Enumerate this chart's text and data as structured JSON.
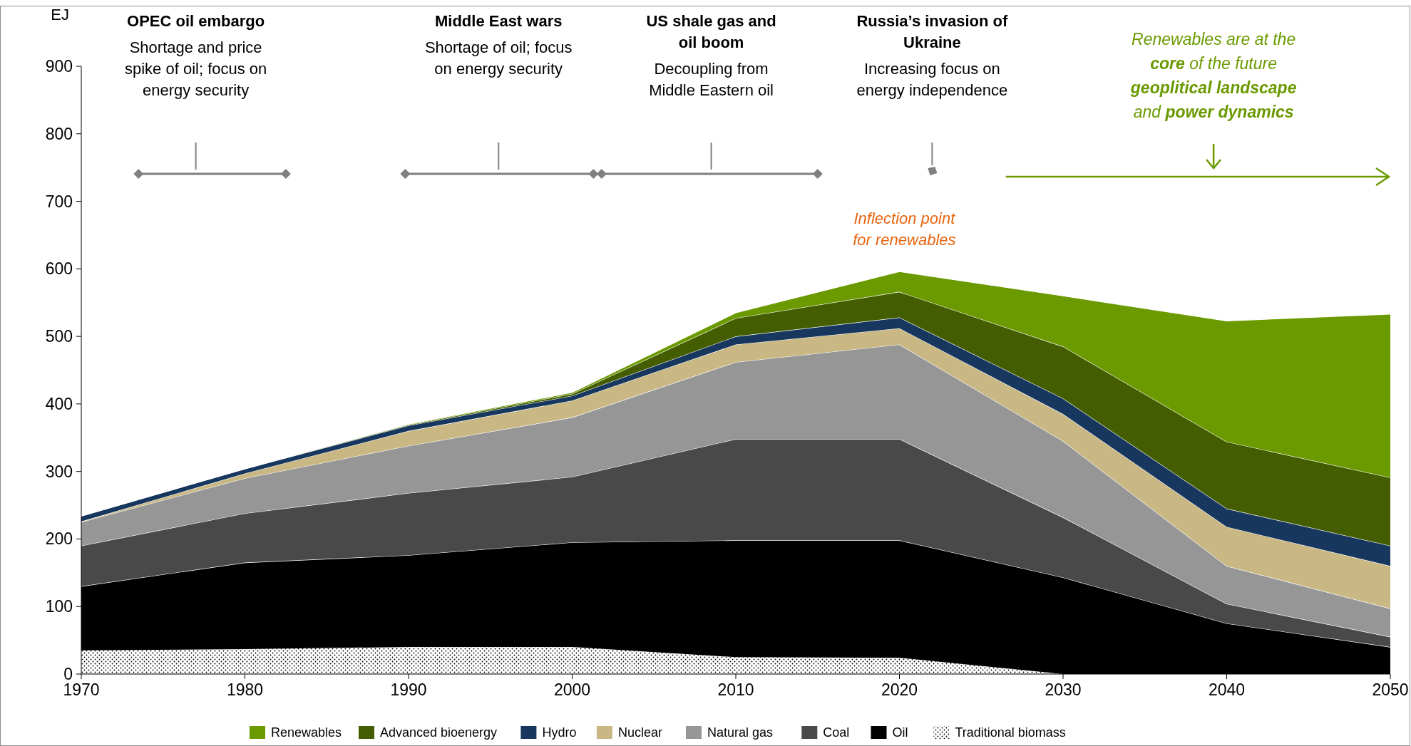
{
  "chart_data": {
    "type": "area",
    "stacked": true,
    "ylabel": "EJ",
    "x": [
      1970,
      1980,
      1990,
      2000,
      2010,
      2020,
      2030,
      2040,
      2050
    ],
    "xlim": [
      1970,
      2050
    ],
    "xticks": [
      1970,
      1980,
      1990,
      2000,
      2010,
      2020,
      2030,
      2040,
      2050
    ],
    "ylim": [
      0,
      900
    ],
    "yticks": [
      0,
      100,
      200,
      300,
      400,
      500,
      600,
      700,
      800,
      900
    ],
    "grid": false,
    "legend": "bottom",
    "series": [
      {
        "name": "Traditional biomass",
        "color": "#000000",
        "values": [
          35,
          37,
          40,
          40,
          25,
          24,
          0,
          0,
          0
        ]
      },
      {
        "name": "Oil",
        "color": "#000000",
        "values": [
          95,
          128,
          136,
          155,
          173,
          174,
          143,
          75,
          40
        ]
      },
      {
        "name": "Coal",
        "color": "#494949",
        "values": [
          60,
          73,
          92,
          97,
          150,
          150,
          89,
          29,
          15
        ]
      },
      {
        "name": "Natural gas",
        "color": "#969696",
        "values": [
          35,
          52,
          70,
          88,
          114,
          140,
          113,
          56,
          42
        ]
      },
      {
        "name": "Nuclear",
        "color": "#c9b784",
        "values": [
          1,
          7,
          22,
          25,
          26,
          24,
          40,
          58,
          63
        ]
      },
      {
        "name": "Hydro",
        "color": "#17375e",
        "values": [
          8,
          7,
          8,
          7,
          12,
          16,
          23,
          27,
          30
        ]
      },
      {
        "name": "Advanced bioenergy",
        "color": "#435d00",
        "values": [
          0,
          0,
          1,
          3,
          27,
          38,
          77,
          99,
          101
        ]
      },
      {
        "name": "Renewables",
        "color": "#6a9a00",
        "values": [
          0,
          0,
          1,
          2,
          8,
          30,
          75,
          179,
          242
        ]
      }
    ],
    "annotations": [
      "OPEC oil embargo",
      "Shortage and price\nspike of oil; focus on\nenergy security",
      "Middle East wars",
      "Shortage of oil; focus\non energy security",
      "US shale gas and\noil boom",
      "Decoupling from\nMiddle Eastern oil",
      "Russia’s invasion of\nUkraine",
      "Increasing focus on\nenergy independence",
      "Inflection point\nfor renewables",
      "Renewables are at the",
      "core",
      "of the future",
      "geoplitical landscape",
      "and",
      "power dynamics"
    ]
  }
}
